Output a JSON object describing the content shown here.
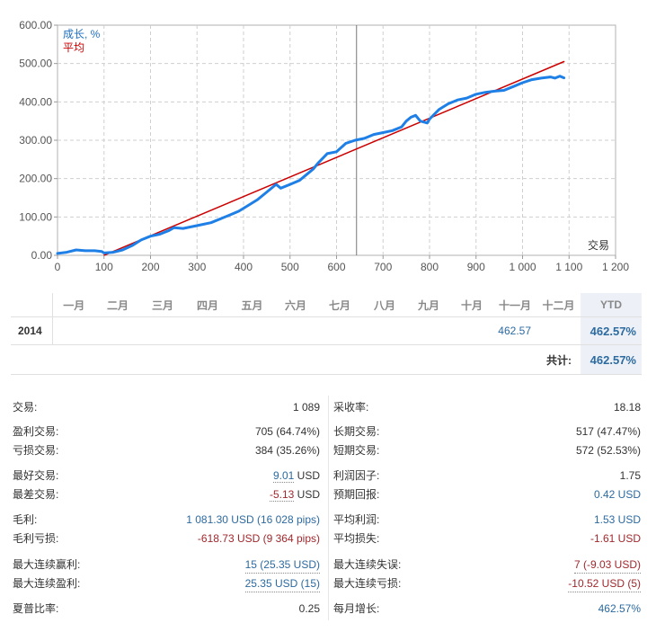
{
  "chart_data": {
    "type": "line",
    "legend": [
      "成长, %",
      "平均"
    ],
    "legend_colors": [
      "#1e7fe6",
      "#cc0000"
    ],
    "xlabel": "交易",
    "xlim": [
      0,
      1200
    ],
    "ylim": [
      0,
      600
    ],
    "xticks": [
      "0",
      "100",
      "200",
      "300",
      "400",
      "500",
      "600",
      "700",
      "800",
      "900",
      "1 000",
      "1 100",
      "1 200"
    ],
    "yticks": [
      "0.00",
      "100.00",
      "200.00",
      "300.00",
      "400.00",
      "500.00",
      "600.00"
    ],
    "grid": true,
    "marker_x": 643,
    "series": [
      {
        "name": "成长, %",
        "color": "#1e7fe6",
        "points": [
          [
            0,
            5
          ],
          [
            20,
            8
          ],
          [
            40,
            14
          ],
          [
            60,
            12
          ],
          [
            80,
            12
          ],
          [
            95,
            10
          ],
          [
            100,
            6
          ],
          [
            120,
            8
          ],
          [
            140,
            14
          ],
          [
            160,
            25
          ],
          [
            180,
            40
          ],
          [
            200,
            50
          ],
          [
            220,
            55
          ],
          [
            240,
            65
          ],
          [
            250,
            72
          ],
          [
            270,
            70
          ],
          [
            290,
            75
          ],
          [
            310,
            80
          ],
          [
            330,
            85
          ],
          [
            350,
            95
          ],
          [
            370,
            105
          ],
          [
            390,
            115
          ],
          [
            410,
            130
          ],
          [
            430,
            145
          ],
          [
            450,
            165
          ],
          [
            470,
            185
          ],
          [
            480,
            175
          ],
          [
            500,
            185
          ],
          [
            520,
            195
          ],
          [
            540,
            215
          ],
          [
            550,
            225
          ],
          [
            560,
            240
          ],
          [
            580,
            265
          ],
          [
            600,
            270
          ],
          [
            620,
            292
          ],
          [
            640,
            300
          ],
          [
            660,
            305
          ],
          [
            680,
            315
          ],
          [
            700,
            320
          ],
          [
            720,
            325
          ],
          [
            740,
            335
          ],
          [
            750,
            350
          ],
          [
            760,
            360
          ],
          [
            770,
            365
          ],
          [
            780,
            350
          ],
          [
            795,
            345
          ],
          [
            800,
            355
          ],
          [
            820,
            380
          ],
          [
            840,
            395
          ],
          [
            860,
            405
          ],
          [
            880,
            410
          ],
          [
            900,
            420
          ],
          [
            920,
            425
          ],
          [
            940,
            428
          ],
          [
            960,
            430
          ],
          [
            980,
            440
          ],
          [
            1000,
            450
          ],
          [
            1020,
            458
          ],
          [
            1040,
            462
          ],
          [
            1060,
            465
          ],
          [
            1070,
            462
          ],
          [
            1080,
            467
          ],
          [
            1089,
            462.57
          ]
        ]
      },
      {
        "name": "平均",
        "color": "#cc0000",
        "points": [
          [
            100,
            0
          ],
          [
            1089,
            505
          ]
        ]
      }
    ]
  },
  "monthly": {
    "months": [
      "一月",
      "二月",
      "三月",
      "四月",
      "五月",
      "六月",
      "七月",
      "八月",
      "九月",
      "十月",
      "十一月",
      "十二月"
    ],
    "ytd_label": "YTD",
    "year": "2014",
    "values": [
      "",
      "",
      "",
      "",
      "",
      "",
      "",
      "",
      "",
      "",
      "462.57",
      ""
    ],
    "ytd": "462.57%",
    "total_label": "共计:",
    "total": "462.57%"
  },
  "stats_left": [
    {
      "label": "交易:",
      "value": "1 089"
    },
    {
      "label": "盈利交易:",
      "value": "705 (64.74%)"
    },
    {
      "label": "亏损交易:",
      "value": "384 (35.26%)"
    },
    {
      "label": "最好交易:",
      "value": "9.01",
      "unit": " USD"
    },
    {
      "label": "最差交易:",
      "value": "-5.13",
      "unit": " USD"
    },
    {
      "label": "毛利:",
      "value": "1 081.30 USD (16 028 pips)"
    },
    {
      "label": "毛利亏损:",
      "value": "-618.73 USD (9 364 pips)"
    },
    {
      "label": "最大连续赢利:",
      "value": "15 (25.35 USD)"
    },
    {
      "label": "最大连续盈利:",
      "value": "25.35 USD (15)"
    },
    {
      "label": "夏普比率:",
      "value": "0.25"
    }
  ],
  "stats_right": [
    {
      "label": "采收率:",
      "value": "18.18"
    },
    {
      "label": "长期交易:",
      "value": "517 (47.47%)"
    },
    {
      "label": "短期交易:",
      "value": "572 (52.53%)"
    },
    {
      "label": "利润因子:",
      "value": "1.75"
    },
    {
      "label": "预期回报:",
      "value": "0.42 USD"
    },
    {
      "label": "平均利润:",
      "value": "1.53 USD"
    },
    {
      "label": "平均损失:",
      "value": "-1.61 USD"
    },
    {
      "label": "最大连续失误:",
      "value": "7 (-9.03 USD)"
    },
    {
      "label": "最大连续亏损:",
      "value": "-10.52 USD (5)"
    },
    {
      "label": "每月增长:",
      "value": "462.57%"
    }
  ]
}
